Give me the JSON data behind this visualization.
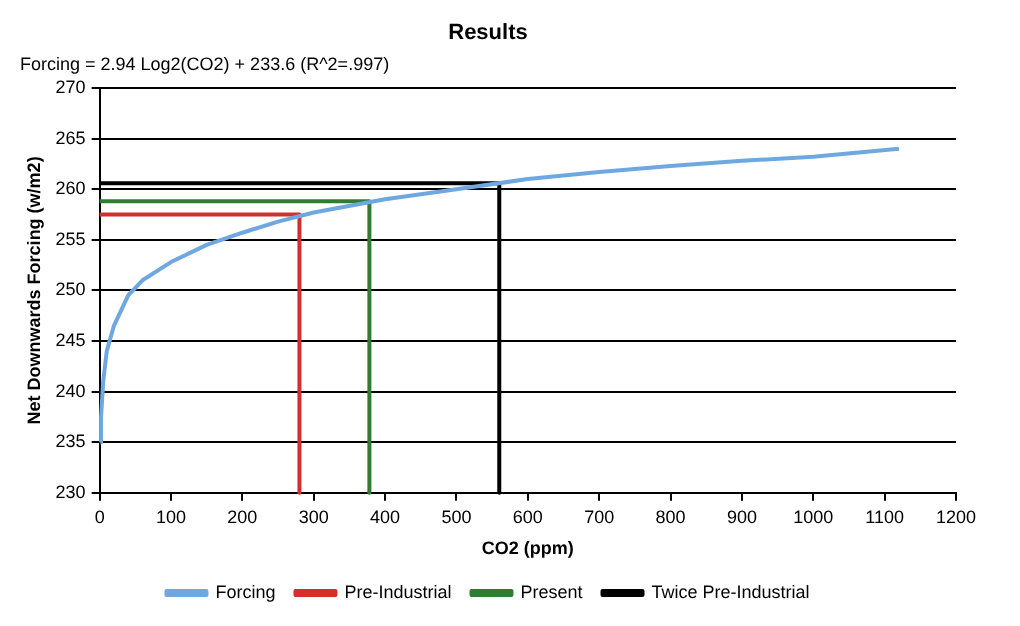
{
  "chart_data": {
    "type": "line",
    "title": "Results",
    "subtitle": "Forcing = 2.94 Log2(CO2) + 233.6 (R^2=.997)",
    "xlabel": "CO2 (ppm)",
    "ylabel": "Net Downwards Forcing (w/m2)",
    "xlim": [
      0,
      1200
    ],
    "xticks": [
      0,
      100,
      200,
      300,
      400,
      500,
      600,
      700,
      800,
      900,
      1000,
      1100,
      1200
    ],
    "ylim": [
      230,
      270
    ],
    "yticks": [
      230,
      235,
      240,
      245,
      250,
      255,
      260,
      265,
      270
    ],
    "grid": "y",
    "legend": "bottom",
    "marker": "none",
    "line_style": "solid",
    "series": [
      {
        "name": "Forcing",
        "color": "#6fa8e0",
        "x": [
          1,
          2,
          5,
          10,
          20,
          40,
          60,
          100,
          150,
          200,
          250,
          300,
          400,
          500,
          600,
          700,
          800,
          900,
          1000,
          1120
        ],
        "values": [
          235,
          237.5,
          241,
          244,
          246.5,
          249.5,
          251,
          252.8,
          254.5,
          255.7,
          256.8,
          257.7,
          259,
          260,
          261,
          261.7,
          262.3,
          262.8,
          263.2,
          264
        ]
      },
      {
        "name": "Pre-Industrial",
        "color": "#d0312d",
        "x": [
          0,
          280,
          280
        ],
        "values": [
          257.5,
          257.5,
          230
        ]
      },
      {
        "name": "Present",
        "color": "#2e7d32",
        "x": [
          0,
          378,
          378
        ],
        "values": [
          258.8,
          258.8,
          230
        ]
      },
      {
        "name": "Twice Pre-Industrial",
        "color": "#000000",
        "x": [
          0,
          560,
          560
        ],
        "values": [
          260.6,
          260.6,
          230
        ]
      }
    ]
  }
}
